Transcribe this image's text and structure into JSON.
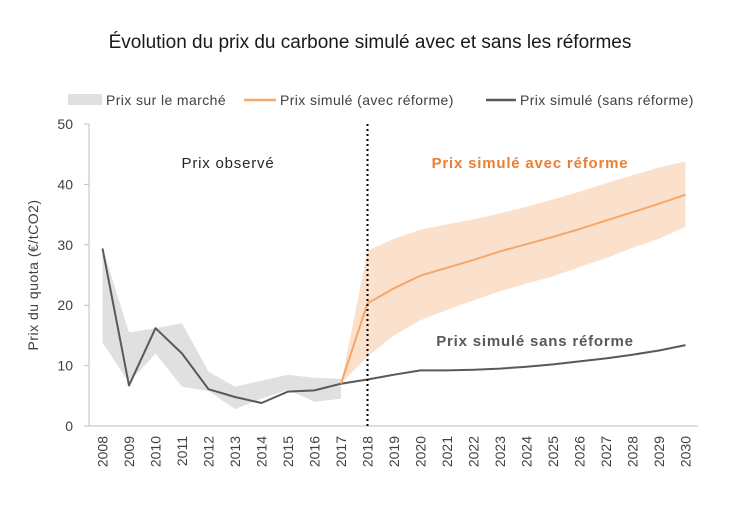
{
  "chart_data": {
    "type": "line",
    "title": "Évolution du prix du carbone simulé avec et sans les réformes",
    "xlabel": "",
    "ylabel": "Prix du quota (€/tCO2)",
    "ylim": [
      0,
      50
    ],
    "yticks": [
      0,
      10,
      20,
      30,
      40,
      50
    ],
    "x": [
      2008,
      2009,
      2010,
      2011,
      2012,
      2013,
      2014,
      2015,
      2016,
      2017,
      2018,
      2019,
      2020,
      2021,
      2022,
      2023,
      2024,
      2025,
      2026,
      2027,
      2028,
      2029,
      2030
    ],
    "grid": false,
    "legend_position": "top",
    "legend": [
      "Prix sur le marché",
      "Prix simulé (avec réforme)",
      "Prix simulé (sans réforme)"
    ],
    "series": [
      {
        "name": "Prix sur le marché",
        "kind": "band",
        "color": "#e0e0e0",
        "x": [
          2008,
          2009,
          2010,
          2011,
          2012,
          2013,
          2014,
          2015,
          2016,
          2017
        ],
        "low": [
          13.8,
          7.2,
          12.0,
          6.5,
          5.8,
          2.8,
          4.5,
          6.0,
          4.0,
          4.5
        ],
        "high": [
          29.5,
          15.5,
          16.2,
          17.0,
          9.0,
          6.5,
          7.5,
          8.5,
          8.0,
          7.8
        ]
      },
      {
        "name": "Prix simulé (sans réforme)",
        "kind": "line",
        "color": "#595959",
        "x": [
          2008,
          2009,
          2010,
          2011,
          2012,
          2013,
          2014,
          2015,
          2016,
          2017,
          2018,
          2019,
          2020,
          2021,
          2022,
          2023,
          2024,
          2025,
          2026,
          2027,
          2028,
          2029,
          2030
        ],
        "values": [
          29.4,
          6.7,
          16.2,
          12.0,
          6.1,
          4.8,
          3.8,
          5.7,
          5.9,
          7.0,
          7.7,
          8.5,
          9.2,
          9.2,
          9.3,
          9.5,
          9.8,
          10.2,
          10.7,
          11.2,
          11.8,
          12.5,
          13.4
        ]
      },
      {
        "name": "Prix simulé (avec réforme)",
        "kind": "line",
        "color": "#f5a76a",
        "x": [
          2017,
          2018,
          2019,
          2020,
          2021,
          2022,
          2023,
          2024,
          2025,
          2026,
          2027,
          2028,
          2029,
          2030
        ],
        "values": [
          7.0,
          20.3,
          22.8,
          24.9,
          26.2,
          27.5,
          28.9,
          30.1,
          31.3,
          32.6,
          34.0,
          35.4,
          36.8,
          38.3
        ],
        "band_color": "#fbe0cc",
        "band_low": [
          7.0,
          11.5,
          15.0,
          17.5,
          19.2,
          20.8,
          22.3,
          23.6,
          24.8,
          26.3,
          27.8,
          29.5,
          31.0,
          33.0
        ],
        "band_high": [
          7.0,
          29.0,
          31.0,
          32.5,
          33.4,
          34.2,
          35.2,
          36.3,
          37.5,
          38.8,
          40.2,
          41.5,
          42.8,
          43.8
        ]
      }
    ],
    "divider": {
      "x": 2018,
      "style": "dotted",
      "color": "#000000"
    },
    "annotations": [
      {
        "text": "Prix observé",
        "color": "#262626"
      },
      {
        "text": "Prix simulé avec réforme",
        "color": "#ee7d31"
      },
      {
        "text": "Prix simulé sans réforme",
        "color": "#595959"
      }
    ]
  }
}
